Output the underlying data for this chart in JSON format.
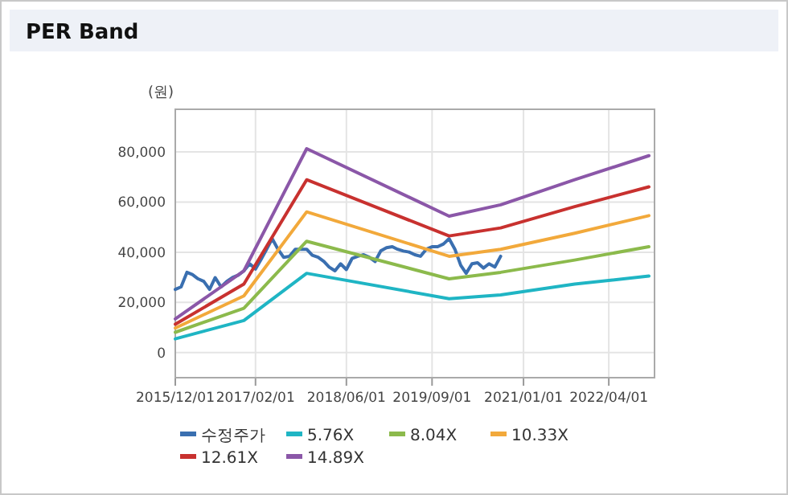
{
  "chart_data": {
    "type": "line",
    "title": "PER Band",
    "ylabel": "(원)",
    "xlim": [
      "2015-12-01",
      "2022-12-01"
    ],
    "ylim": [
      -10000,
      97000
    ],
    "xticks": [
      {
        "value": "2015-12-01",
        "label": "2015/12/01"
      },
      {
        "value": "2017-02-01",
        "label": "2017/02/01"
      },
      {
        "value": "2018-06-01",
        "label": "2018/06/01"
      },
      {
        "value": "2019-09-01",
        "label": "2019/09/01"
      },
      {
        "value": "2021-01-01",
        "label": "2021/01/01"
      },
      {
        "value": "2022-04-01",
        "label": "2022/04/01"
      }
    ],
    "yticks": [
      {
        "value": 0,
        "label": "0"
      },
      {
        "value": 20000,
        "label": "20,000"
      },
      {
        "value": 40000,
        "label": "40,000"
      },
      {
        "value": 60000,
        "label": "60,000"
      },
      {
        "value": 80000,
        "label": "80,000"
      }
    ],
    "grid": true,
    "legend": "bottom",
    "marker": "none",
    "line_style": "solid",
    "series": [
      {
        "name": "수정주가",
        "color": "#3a6fb0",
        "x": [
          "2015-12",
          "2016-01",
          "2016-02",
          "2016-03",
          "2016-04",
          "2016-05",
          "2016-06",
          "2016-07",
          "2016-08",
          "2016-09",
          "2016-10",
          "2016-11",
          "2016-12",
          "2017-01",
          "2017-02",
          "2017-03",
          "2017-04",
          "2017-05",
          "2017-06",
          "2017-07",
          "2017-08",
          "2017-09",
          "2017-10",
          "2017-11",
          "2017-12",
          "2018-01",
          "2018-02",
          "2018-03",
          "2018-04",
          "2018-05",
          "2018-06",
          "2018-07",
          "2018-08",
          "2018-09",
          "2018-10",
          "2018-11",
          "2018-12",
          "2019-01",
          "2019-02",
          "2019-03",
          "2019-04",
          "2019-05",
          "2019-06",
          "2019-07",
          "2019-08",
          "2019-09",
          "2019-10",
          "2019-11",
          "2019-12",
          "2020-01",
          "2020-02",
          "2020-03",
          "2020-04",
          "2020-05",
          "2020-06",
          "2020-07",
          "2020-08",
          "2020-09"
        ],
        "values": [
          25200,
          26200,
          32000,
          31100,
          29400,
          28400,
          25200,
          29900,
          26200,
          28400,
          29900,
          30900,
          32600,
          35400,
          33300,
          36900,
          41200,
          45400,
          41200,
          38000,
          38400,
          41200,
          41200,
          41200,
          38800,
          38000,
          36300,
          34100,
          32600,
          35400,
          33100,
          37500,
          38400,
          39000,
          38000,
          36300,
          40500,
          41800,
          42200,
          41200,
          40500,
          40100,
          39000,
          38400,
          41200,
          42200,
          42200,
          43300,
          45400,
          41200,
          34800,
          31600,
          35400,
          35800,
          33700,
          35400,
          34100,
          38400
        ]
      },
      {
        "name": "5.76X",
        "color": "#1fb5c4",
        "x": [
          "2015-12",
          "2016-12",
          "2017-11",
          "2019-12",
          "2020-09",
          "2021-10",
          "2022-11"
        ],
        "values": [
          5500,
          12800,
          31600,
          21500,
          23000,
          27300,
          30500
        ]
      },
      {
        "name": "8.04X",
        "color": "#8cba4c",
        "x": [
          "2015-12",
          "2016-12",
          "2017-11",
          "2019-12",
          "2020-09",
          "2021-10",
          "2022-11"
        ],
        "values": [
          8100,
          17700,
          44400,
          29400,
          32000,
          36900,
          42200
        ]
      },
      {
        "name": "10.33X",
        "color": "#f2a93b",
        "x": [
          "2015-12",
          "2016-12",
          "2017-11",
          "2019-12",
          "2020-09",
          "2021-10",
          "2022-11"
        ],
        "values": [
          9800,
          22600,
          56100,
          38400,
          41200,
          47600,
          54600
        ]
      },
      {
        "name": "12.61X",
        "color": "#c8312f",
        "x": [
          "2015-12",
          "2016-12",
          "2017-11",
          "2019-12",
          "2020-09",
          "2021-10",
          "2022-11"
        ],
        "values": [
          11300,
          27300,
          68900,
          46500,
          49700,
          58200,
          66100
        ]
      },
      {
        "name": "14.89X",
        "color": "#8b57a8",
        "x": [
          "2015-12",
          "2016-12",
          "2017-11",
          "2019-12",
          "2020-09",
          "2021-10",
          "2022-11"
        ],
        "values": [
          13400,
          32600,
          81300,
          54400,
          58900,
          68900,
          78500
        ]
      }
    ]
  }
}
